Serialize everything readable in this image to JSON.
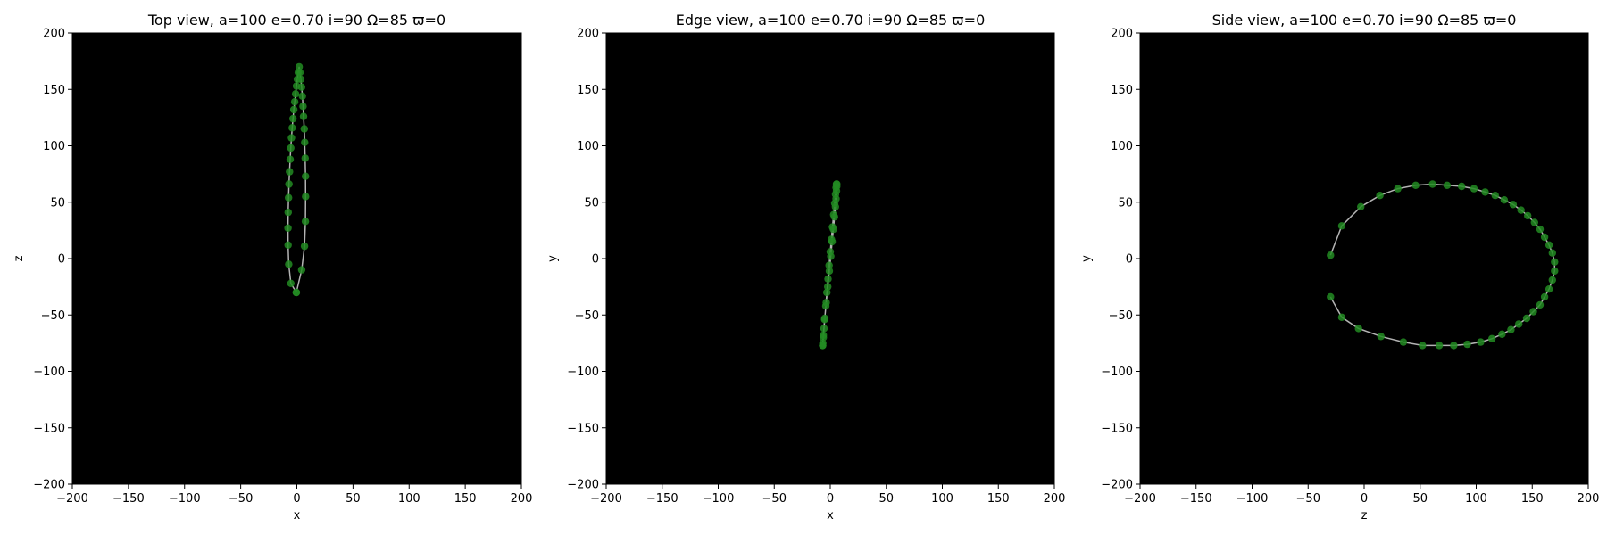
{
  "chart_data": [
    {
      "type": "scatter",
      "title": "Top view, a=100 e=0.70 i=90 Ω=85 ϖ=0",
      "xlabel": "x",
      "ylabel": "z",
      "xlim": [
        -200,
        200
      ],
      "ylim": [
        -200,
        200
      ],
      "xticks": [
        -200,
        -150,
        -100,
        -50,
        0,
        50,
        100,
        150,
        200
      ],
      "yticks": [
        -200,
        -150,
        -100,
        -50,
        0,
        50,
        100,
        150,
        200
      ],
      "xtick_labels": [
        "−200",
        "−150",
        "−100",
        "−50",
        "0",
        "50",
        "100",
        "150",
        "200"
      ],
      "ytick_labels": [
        "−200",
        "−150",
        "−100",
        "−50",
        "0",
        "50",
        "100",
        "150",
        "200"
      ],
      "grid": false,
      "background": "#000000",
      "line_color": "#b3b3b3",
      "marker_color": "#228b22",
      "series": [
        {
          "x": [
            -0.5,
            -5.3,
            -7.2,
            -7.8,
            -7.9,
            -7.7,
            -7.4,
            -7.0,
            -6.5,
            -6.0,
            -5.4,
            -4.8,
            -4.1,
            -3.4,
            -2.7,
            -1.9,
            -1.1,
            -0.3,
            0.5,
            1.3,
            2.1,
            2.8,
            3.5,
            4.2,
            4.9,
            5.5,
            6.0,
            6.6,
            7.0,
            7.4,
            7.7,
            7.8,
            7.6,
            6.8,
            4.3,
            -0.5
          ],
          "z": [
            -30.0,
            -22.0,
            -5.0,
            12.0,
            27.0,
            41.0,
            54.0,
            66.0,
            77.0,
            88.0,
            98.0,
            107.0,
            116.0,
            124.0,
            132.0,
            139.0,
            146.0,
            153.0,
            159.0,
            165.0,
            170.0,
            165.0,
            159.0,
            152.0,
            144.0,
            135.0,
            126.0,
            115.0,
            103.0,
            89.0,
            73.0,
            55.0,
            33.0,
            11.0,
            -10.0,
            -30.0
          ]
        }
      ]
    },
    {
      "type": "scatter",
      "title": "Edge view, a=100 e=0.70 i=90 Ω=85 ϖ=0",
      "xlabel": "x",
      "ylabel": "y",
      "xlim": [
        -200,
        200
      ],
      "ylim": [
        -200,
        200
      ],
      "xticks": [
        -200,
        -150,
        -100,
        -50,
        0,
        50,
        100,
        150,
        200
      ],
      "yticks": [
        -200,
        -150,
        -100,
        -50,
        0,
        50,
        100,
        150,
        200
      ],
      "xtick_labels": [
        "−200",
        "−150",
        "−100",
        "−50",
        "0",
        "50",
        "100",
        "150",
        "200"
      ],
      "ytick_labels": [
        "−200",
        "−150",
        "−100",
        "−50",
        "0",
        "50",
        "100",
        "150",
        "200"
      ],
      "grid": false,
      "background": "#000000",
      "line_color": "#b3b3b3",
      "marker_color": "#228b22",
      "series": [
        {
          "x": [
            -6.8,
            -6.6,
            -6.2,
            -5.6,
            -4.9,
            -4.0,
            -3.0,
            -2.0,
            -1.0,
            0.0,
            1.0,
            2.0,
            3.0,
            4.0,
            4.7,
            5.2,
            5.6,
            5.8,
            5.8,
            5.6,
            5.2,
            4.6,
            3.8,
            2.8,
            1.7,
            0.5,
            -0.8,
            -2.2,
            -3.6,
            -5.0,
            -6.2,
            -6.8
          ],
          "y": [
            -77.0,
            -75.0,
            -70.0,
            -62.0,
            -53.0,
            -42.0,
            -30.0,
            -18.0,
            -6.0,
            6.0,
            17.0,
            28.0,
            39.0,
            49.0,
            57.0,
            63.0,
            66.0,
            66.0,
            64.0,
            60.0,
            53.0,
            46.0,
            37.0,
            26.0,
            15.0,
            2.0,
            -11.0,
            -25.0,
            -39.0,
            -54.0,
            -68.0,
            -77.0
          ]
        }
      ]
    },
    {
      "type": "scatter",
      "title": "Side view, a=100 e=0.70 i=90 Ω=85 ϖ=0",
      "xlabel": "z",
      "ylabel": "y",
      "xlim": [
        -200,
        200
      ],
      "ylim": [
        -200,
        200
      ],
      "xticks": [
        -200,
        -150,
        -100,
        -50,
        0,
        50,
        100,
        150,
        200
      ],
      "yticks": [
        -200,
        -150,
        -100,
        -50,
        0,
        50,
        100,
        150,
        200
      ],
      "xtick_labels": [
        "−200",
        "−150",
        "−100",
        "−50",
        "0",
        "50",
        "100",
        "150",
        "200"
      ],
      "ytick_labels": [
        "−200",
        "−150",
        "−100",
        "−50",
        "0",
        "50",
        "100",
        "150",
        "200"
      ],
      "grid": false,
      "background": "#000000",
      "line_color": "#b3b3b3",
      "marker_color": "#228b22",
      "series": [
        {
          "x": [
            -30,
            -20,
            -3,
            14,
            30,
            46,
            61,
            74,
            87,
            98,
            108,
            117,
            125,
            133,
            140,
            146,
            152,
            157,
            161,
            165,
            168,
            170,
            170,
            168,
            165,
            161,
            157,
            151,
            145,
            138,
            131,
            123,
            114,
            104,
            92,
            80,
            67,
            52,
            35,
            15,
            -5,
            -20,
            -30
          ],
          "y": [
            3,
            29,
            46,
            56,
            62,
            65,
            66,
            65,
            64,
            62,
            59,
            56,
            52,
            48,
            43,
            38,
            32,
            26,
            19,
            12,
            5,
            -3,
            -11,
            -19,
            -27,
            -34,
            -41,
            -47,
            -53,
            -58,
            -63,
            -67,
            -71,
            -74,
            -76,
            -77,
            -77,
            -77,
            -74,
            -69,
            -62,
            -52,
            -34
          ]
        }
      ]
    }
  ]
}
